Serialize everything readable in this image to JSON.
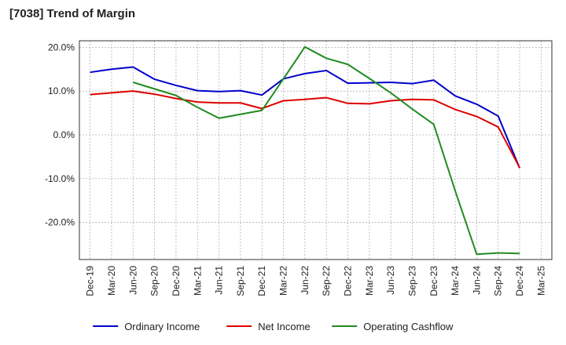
{
  "chart_data": {
    "type": "line",
    "title": "[7038]  Trend of Margin",
    "xlabel": "",
    "ylabel": "",
    "x_ticks": [
      "Dec-19",
      "Mar-20",
      "Jun-20",
      "Sep-20",
      "Dec-20",
      "Mar-21",
      "Jun-21",
      "Sep-21",
      "Dec-21",
      "Mar-22",
      "Jun-22",
      "Sep-22",
      "Dec-22",
      "Mar-23",
      "Jun-23",
      "Sep-23",
      "Dec-23",
      "Mar-24",
      "Jun-24",
      "Sep-24",
      "Dec-24",
      "Mar-25"
    ],
    "y_ticks": [
      {
        "value": 20,
        "label": "20.0%"
      },
      {
        "value": 10,
        "label": "10.0%"
      },
      {
        "value": 0,
        "label": "0.0%"
      },
      {
        "value": -10,
        "label": "-10.0%"
      },
      {
        "value": -20,
        "label": "-20.0%"
      }
    ],
    "ylim": [
      -28.5,
      21.5
    ],
    "grid": true,
    "legend_position": "bottom",
    "series": [
      {
        "name": "Ordinary Income",
        "color": "#0000cc",
        "values": [
          14.3,
          15.0,
          15.5,
          12.7,
          11.3,
          10.1,
          9.9,
          10.1,
          9.1,
          12.8,
          14.0,
          14.7,
          11.8,
          11.9,
          12.0,
          11.7,
          12.5,
          8.9,
          7.0,
          4.3,
          -7.6,
          null
        ]
      },
      {
        "name": "Net Income",
        "color": "#dd0000",
        "values": [
          9.2,
          9.6,
          10.0,
          9.3,
          8.3,
          7.5,
          7.3,
          7.3,
          6.0,
          7.8,
          8.1,
          8.5,
          7.2,
          7.1,
          7.8,
          8.1,
          8.0,
          5.8,
          4.2,
          1.8,
          -7.5,
          null
        ]
      },
      {
        "name": "Operating Cashflow",
        "color": "#228b22",
        "values": [
          null,
          null,
          12.0,
          10.5,
          9.0,
          6.3,
          3.8,
          4.7,
          5.6,
          12.8,
          20.1,
          17.5,
          16.1,
          12.9,
          9.6,
          5.9,
          2.4,
          -12.8,
          -27.3,
          -27.0,
          -27.1,
          null
        ]
      }
    ]
  }
}
